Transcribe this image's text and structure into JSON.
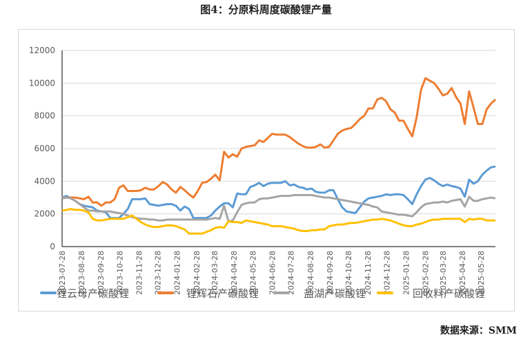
{
  "title": "图4：分原料周度碳酸锂产量",
  "source": "数据来源：SMM",
  "chart_data": {
    "type": "line",
    "title": "图4：分原料周度碳酸锂产量",
    "xlabel": "",
    "ylabel": "",
    "ylim": [
      0,
      12000
    ],
    "yticks": [
      "0",
      "2000",
      "4000",
      "6000",
      "8000",
      "10000",
      "12000"
    ],
    "xticks": [
      "2023-07-28",
      "2023-08-28",
      "2023-09-28",
      "2023-10-28",
      "2023-11-28",
      "2023-12-28",
      "2024-01-28",
      "2024-02-28",
      "2024-03-28",
      "2024-04-28",
      "2024-05-28",
      "2024-06-28",
      "2024-07-28",
      "2024-08-28",
      "2024-09-28",
      "2024-10-28",
      "2024-11-28",
      "2024-12-28",
      "2025-01-28",
      "2025-02-28",
      "2025-03-28",
      "2025-04-28",
      "2025-05-28"
    ],
    "x_frequency": "weekly",
    "grid": true,
    "legend_position": "bottom",
    "series": [
      {
        "name": "锂云母产碳酸锂",
        "color": "#5b9bd5",
        "values": [
          3000,
          3100,
          2950,
          2800,
          2600,
          2500,
          2450,
          2400,
          2200,
          2150,
          2100,
          1750,
          1750,
          1750,
          2000,
          2300,
          2900,
          2900,
          2900,
          2950,
          2600,
          2550,
          2500,
          2550,
          2600,
          2600,
          2500,
          2200,
          2450,
          2300,
          1750,
          1750,
          1750,
          1750,
          1900,
          2200,
          2450,
          2650,
          2650,
          2400,
          3250,
          3200,
          3200,
          3650,
          3750,
          3900,
          3700,
          3850,
          3900,
          3900,
          3900,
          4000,
          3750,
          3800,
          3650,
          3600,
          3500,
          3550,
          3350,
          3300,
          3300,
          3450,
          3450,
          2900,
          2400,
          2150,
          2100,
          2050,
          2400,
          2750,
          2950,
          3000,
          3050,
          3100,
          3200,
          3150,
          3200,
          3200,
          3150,
          2900,
          2600,
          3200,
          3700,
          4100,
          4200,
          4050,
          3850,
          3700,
          3800,
          3700,
          3650,
          3550,
          3050,
          4100,
          3850,
          4000,
          4400,
          4650,
          4850,
          4900
        ]
      },
      {
        "name": "锂辉石产碳酸锂",
        "color": "#ed7d31",
        "values": [
          2970,
          3000,
          3000,
          3000,
          2950,
          2900,
          3050,
          2700,
          2700,
          2500,
          2700,
          2700,
          2900,
          3600,
          3750,
          3400,
          3400,
          3400,
          3450,
          3600,
          3500,
          3500,
          3700,
          3950,
          3800,
          3500,
          3300,
          3650,
          3450,
          3200,
          3000,
          3400,
          3900,
          3950,
          4150,
          4400,
          4050,
          5800,
          5450,
          5650,
          5500,
          6000,
          6100,
          6150,
          6200,
          6500,
          6400,
          6650,
          6900,
          6850,
          6850,
          6850,
          6700,
          6500,
          6300,
          6150,
          6050,
          6050,
          6100,
          6250,
          6050,
          6100,
          6500,
          6900,
          7100,
          7200,
          7250,
          7500,
          7800,
          8000,
          8450,
          8450,
          9000,
          9100,
          8900,
          8400,
          8200,
          7700,
          7700,
          7200,
          6750,
          7900,
          9600,
          10300,
          10150,
          10000,
          9650,
          9250,
          9350,
          9700,
          9150,
          8750,
          7500,
          9500,
          8500,
          7500,
          7500,
          8400,
          8750,
          9000
        ]
      },
      {
        "name": "盐湖产碳酸锂",
        "color": "#a5a5a5",
        "values": [
          2950,
          3000,
          2950,
          2800,
          2600,
          2400,
          2200,
          2200,
          2150,
          2150,
          2150,
          2150,
          2100,
          2050,
          2000,
          1900,
          1800,
          1750,
          1700,
          1700,
          1650,
          1650,
          1600,
          1600,
          1650,
          1650,
          1650,
          1650,
          1650,
          1650,
          1650,
          1650,
          1650,
          1650,
          1700,
          1750,
          1700,
          2500,
          1550,
          1600,
          2100,
          2550,
          2650,
          2700,
          2700,
          2900,
          2950,
          2950,
          3000,
          3050,
          3100,
          3100,
          3100,
          3150,
          3150,
          3150,
          3150,
          3150,
          3100,
          3050,
          3000,
          3000,
          2950,
          2900,
          2850,
          2800,
          2750,
          2700,
          2650,
          2600,
          2550,
          2450,
          2400,
          2150,
          2100,
          2050,
          2000,
          1950,
          1950,
          1900,
          1850,
          2100,
          2400,
          2600,
          2650,
          2700,
          2700,
          2750,
          2700,
          2800,
          2850,
          2900,
          2450,
          3050,
          2800,
          2800,
          2900,
          2950,
          3000,
          2950
        ]
      },
      {
        "name": "回收料产碳酸锂",
        "color": "#ffc000",
        "values": [
          2200,
          2250,
          2300,
          2250,
          2250,
          2200,
          2100,
          1700,
          1600,
          1600,
          1650,
          1700,
          1700,
          1700,
          1700,
          1800,
          1900,
          1700,
          1500,
          1350,
          1250,
          1200,
          1200,
          1250,
          1300,
          1300,
          1250,
          1150,
          1050,
          800,
          800,
          800,
          800,
          900,
          1000,
          1150,
          1200,
          1150,
          1550,
          1500,
          1500,
          1450,
          1600,
          1550,
          1500,
          1450,
          1400,
          1350,
          1250,
          1250,
          1250,
          1200,
          1150,
          1100,
          1000,
          950,
          950,
          1000,
          1000,
          1050,
          1050,
          1250,
          1300,
          1350,
          1350,
          1400,
          1450,
          1450,
          1500,
          1550,
          1600,
          1650,
          1650,
          1700,
          1650,
          1600,
          1500,
          1400,
          1300,
          1250,
          1250,
          1350,
          1400,
          1500,
          1600,
          1650,
          1650,
          1700,
          1700,
          1700,
          1700,
          1700,
          1500,
          1700,
          1650,
          1700,
          1700,
          1600,
          1600,
          1600
        ]
      }
    ]
  }
}
